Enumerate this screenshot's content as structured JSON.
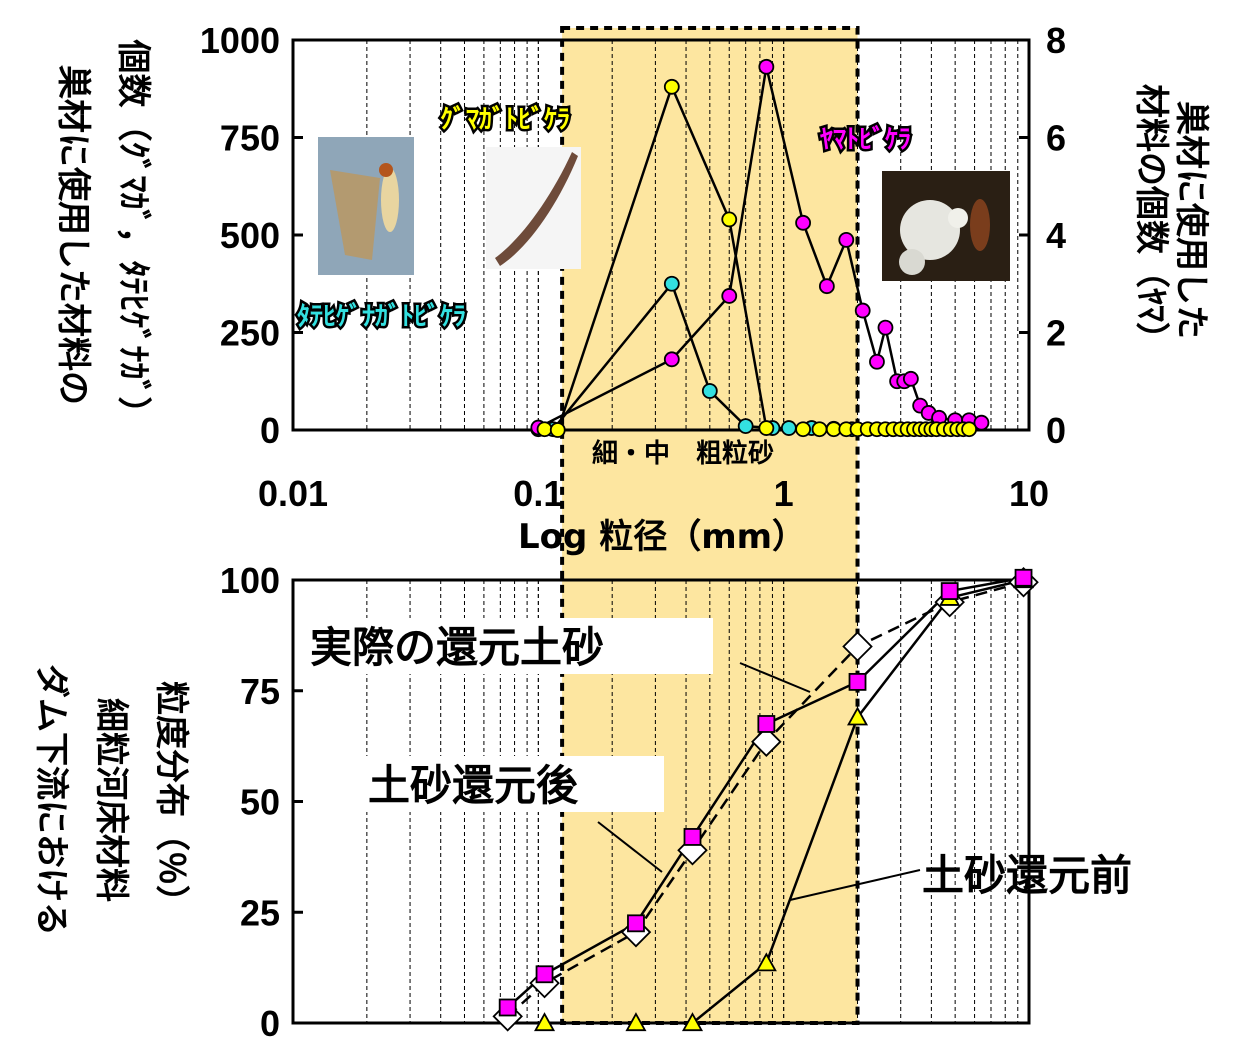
{
  "colors": {
    "highlight_band": "#fde6a0",
    "kumagae": "#ffff00",
    "tatehige": "#33e0e0",
    "yamato": "#ff00ff",
    "after": "#ff00ff",
    "before": "#ffff00",
    "actual": "#ffffff"
  },
  "icons": {
    "photo_tatehige": "larva-photo",
    "photo_kumagae": "case-photo",
    "photo_yamato": "larva-photo"
  },
  "chart_data": [
    {
      "type": "line",
      "x_scale": "log",
      "xlim": [
        0.01,
        10
      ],
      "x_ticks": [
        "0.01",
        "0.1",
        "1",
        "10"
      ],
      "xlabel": "Log 粒径（mm）",
      "ylabel_left": [
        "巣材に使用した材料の",
        "個数（ｸﾞﾏｶﾞ，ﾀﾃﾋｹﾞﾅｶﾞ）"
      ],
      "ylim_left": [
        0,
        1000
      ],
      "y_ticks_left": [
        "1000",
        "750",
        "500",
        "250",
        "0"
      ],
      "ylabel_right": [
        "巣材に使用した",
        "材料の個数（ﾔﾏ）"
      ],
      "ylim_right": [
        0,
        8
      ],
      "y_ticks_right": [
        "8",
        "6",
        "4",
        "2",
        "0"
      ],
      "band_label": "細・中　粗粒砂",
      "band_range": [
        0.125,
        2
      ],
      "series": [
        {
          "name": "ｸﾞﾏｶﾞﾄﾋﾞｹﾗ",
          "axis": "left",
          "x": [
            0.106,
            0.12,
            0.35,
            0.6,
            0.85,
            1.2,
            1.4,
            1.6,
            1.8,
            2.0,
            2.2,
            2.4,
            2.6,
            2.8,
            3.0,
            3.2,
            3.4,
            3.6,
            3.8,
            4.0,
            4.2,
            4.5,
            4.8,
            5.1,
            5.4,
            5.7
          ],
          "y": [
            2,
            0,
            880,
            540,
            5,
            2,
            2,
            2,
            2,
            2,
            2,
            2,
            2,
            2,
            2,
            2,
            2,
            2,
            2,
            2,
            2,
            2,
            2,
            2,
            2,
            2
          ]
        },
        {
          "name": "ﾀﾃﾋｹﾞﾅｶﾞﾄﾋﾞｹﾗ",
          "axis": "left",
          "x": [
            0.1,
            0.115,
            0.35,
            0.5,
            0.7,
            0.9,
            1.05,
            1.3,
            1.6,
            1.9
          ],
          "y": [
            2,
            2,
            375,
            100,
            10,
            5,
            5,
            5,
            3,
            2
          ]
        },
        {
          "name": "ﾔﾏﾄﾋﾞｹﾗ",
          "axis": "right",
          "x": [
            0.1,
            0.35,
            0.6,
            0.85,
            1.2,
            1.5,
            1.8,
            2.1,
            2.4,
            2.6,
            2.9,
            3.1,
            3.3,
            3.6,
            3.9,
            4.3,
            5.0,
            5.7,
            6.4
          ],
          "y": [
            0.05,
            1.45,
            2.75,
            7.45,
            4.25,
            2.95,
            3.9,
            2.45,
            1.4,
            2.1,
            1.0,
            1.0,
            1.05,
            0.5,
            0.35,
            0.25,
            0.2,
            0.2,
            0.15
          ]
        }
      ],
      "photo_labels": [
        "ｸﾞﾏｶﾞﾄﾋﾞｹﾗ",
        "ﾀﾃﾋｹﾞﾅｶﾞﾄﾋﾞｹﾗ",
        "ﾔﾏﾄﾋﾞｹﾗ"
      ]
    },
    {
      "type": "line",
      "x_scale": "log",
      "xlim": [
        0.01,
        10
      ],
      "ylabel": [
        "ダム下流における",
        "細粒河床材料",
        "粒度分布（％）"
      ],
      "ylim": [
        0,
        100
      ],
      "y_ticks": [
        "100",
        "75",
        "50",
        "25",
        "0"
      ],
      "series": [
        {
          "name": "土砂還元後",
          "x": [
            0.075,
            0.106,
            0.25,
            0.425,
            0.85,
            2.0,
            4.75,
            9.5
          ],
          "y": [
            3.5,
            11,
            22.5,
            42,
            67.5,
            77,
            97.5,
            100.5
          ]
        },
        {
          "name": "土砂還元前",
          "x": [
            0.106,
            0.25,
            0.425,
            0.85,
            2.0,
            4.75,
            9.5
          ],
          "y": [
            0,
            0,
            0,
            13.5,
            69,
            96,
            100
          ]
        },
        {
          "name": "実際の還元土砂",
          "x": [
            0.075,
            0.106,
            0.25,
            0.425,
            0.85,
            2.0,
            4.75,
            9.5
          ],
          "y": [
            1.5,
            9,
            20.5,
            39,
            63.5,
            85,
            95,
            99.5
          ]
        }
      ],
      "annotations": [
        "実際の還元土砂",
        "土砂還元後",
        "土砂還元前"
      ]
    }
  ]
}
